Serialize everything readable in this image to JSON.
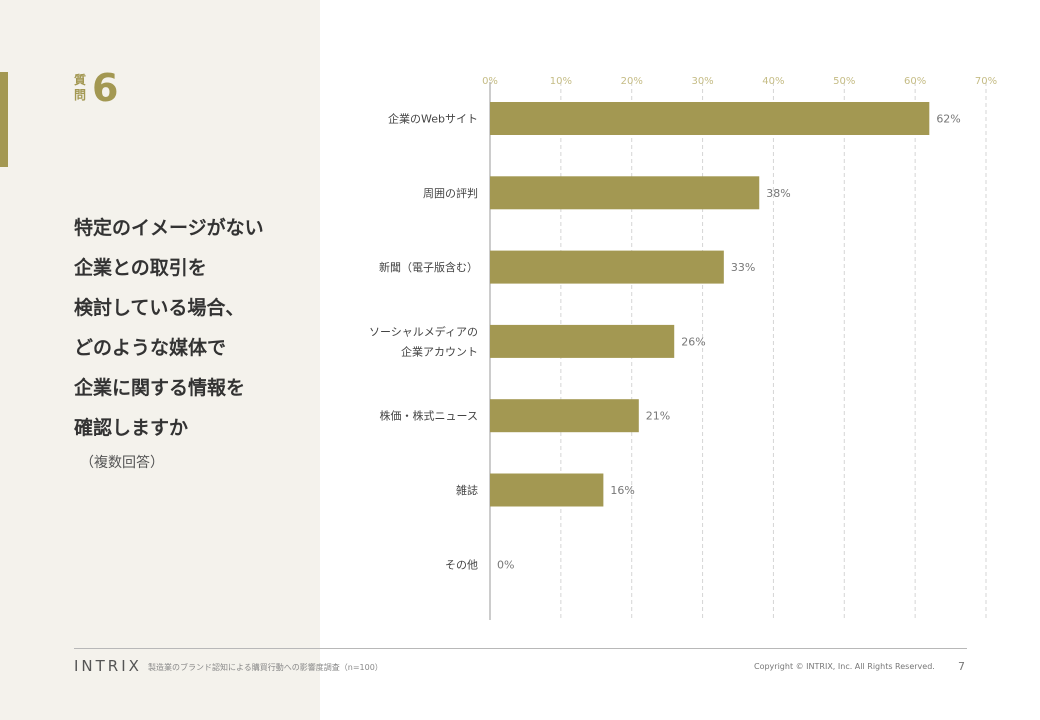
{
  "question": {
    "label": "質問",
    "number": "6",
    "lines": [
      "特定のイメージがない",
      "企業との取引を",
      "検討している場合、",
      "どのような媒体で",
      "企業に関する情報を",
      "確認しますか"
    ],
    "note": "（複数回答）"
  },
  "colors": {
    "accent": "#a39852",
    "panel": "#f4f2ec",
    "tick_text": "#c5bc85"
  },
  "chart_data": {
    "type": "bar",
    "orientation": "horizontal",
    "categories": [
      [
        "企業のWebサイト"
      ],
      [
        "周囲の評判"
      ],
      [
        "新聞（電子版含む）"
      ],
      [
        "ソーシャルメディアの",
        "企業アカウント"
      ],
      [
        "株価・株式ニュース"
      ],
      [
        "雑誌"
      ],
      [
        "その他"
      ]
    ],
    "values": [
      62,
      38,
      33,
      26,
      21,
      16,
      0
    ],
    "value_labels": [
      "62%",
      "38%",
      "33%",
      "26%",
      "21%",
      "16%",
      "0%"
    ],
    "xlim": [
      0,
      70
    ],
    "ticks": [
      0,
      10,
      20,
      30,
      40,
      50,
      60,
      70
    ],
    "tick_labels": [
      "0%",
      "10%",
      "20%",
      "30%",
      "40%",
      "50%",
      "60%",
      "70%"
    ],
    "axis_position": "top",
    "grid": "dashed-vertical",
    "legend": "none"
  },
  "footer": {
    "logo": "INTRIX",
    "subtitle": "製造業のブランド認知による購買行動への影響度調査（n=100）",
    "copyright": "Copyright © INTRIX, Inc. All Rights Reserved.",
    "page": "7"
  }
}
